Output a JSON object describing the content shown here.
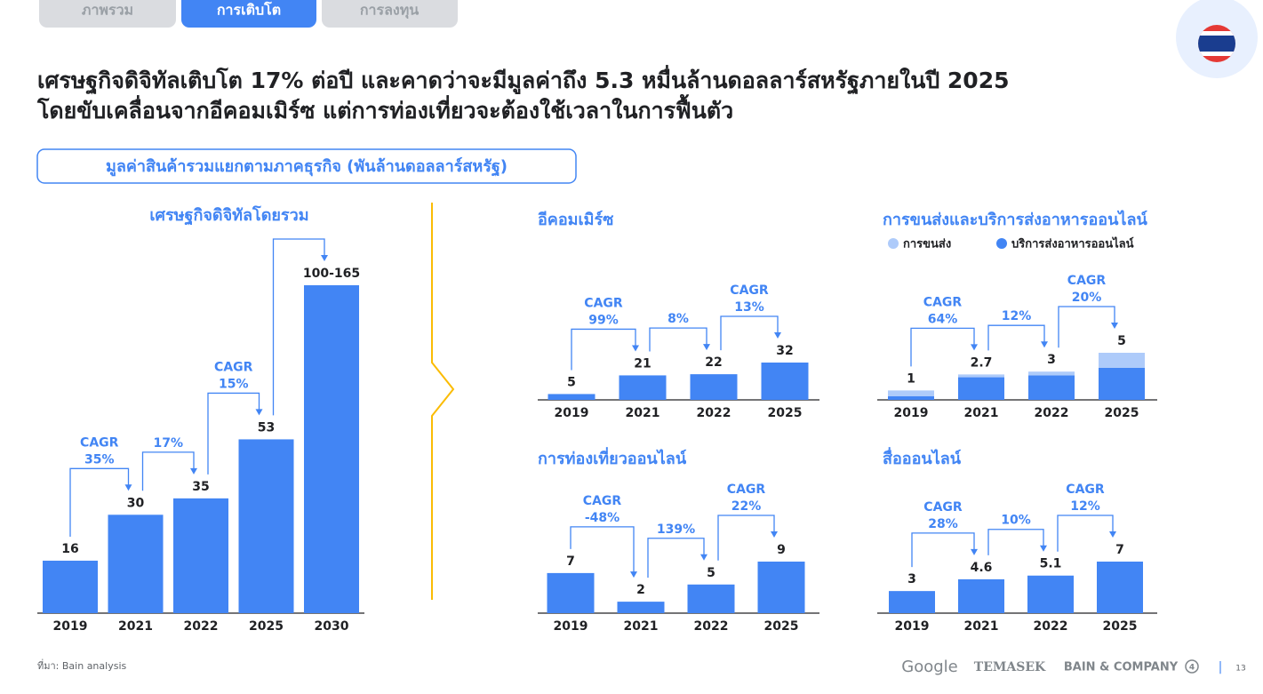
{
  "tabs": [
    "ภาพรวม",
    "การเติบโต",
    "การลงทุน"
  ],
  "heading": [
    "เศรษฐกิจดิจิทัลเติบโต 17% ต่อปี และคาดว่าจะมีมูลค่าถึง 5.3 หมื่นล้านดอลลาร์สหรัฐภายในปี 2025",
    "โดยขับเคลื่อนจากอีคอมเมิร์ซ แต่การท่องเที่ยวจะต้องใช้เวลาในการฟื้นตัว"
  ],
  "subtitle": "มูลค่าสินค้ารวมแยกตามภาคธุรกิจ (พันล้านดอลลาร์สหรัฐ)",
  "source": "ที่มา: Bain analysis",
  "logos": [
    "Google",
    "TEMASEK",
    "BAIN & COMPANY"
  ],
  "bain_mark": "4",
  "separator": "|",
  "page_number": "13",
  "chart_data": [
    {
      "type": "bar",
      "title": "เศรษฐกิจดิจิทัลโดยรวม",
      "categories": [
        "2019",
        "2021",
        "2022",
        "2025",
        "2030"
      ],
      "values": [
        16,
        30,
        35,
        53,
        100
      ],
      "value_labels": [
        "16",
        "30",
        "35",
        "53",
        "100-165"
      ],
      "color": "#4285f4",
      "growth_labels": [
        [
          "CAGR",
          "35%"
        ],
        [
          "17%"
        ],
        [
          "CAGR",
          "15%"
        ],
        null
      ]
    },
    {
      "type": "bar",
      "title": "อีคอมเมิร์ซ",
      "categories": [
        "2019",
        "2021",
        "2022",
        "2025"
      ],
      "values": [
        5,
        21,
        22,
        32
      ],
      "color": "#4285f4",
      "growth_labels": [
        [
          "CAGR",
          "99%"
        ],
        [
          "8%"
        ],
        [
          "CAGR",
          "13%"
        ]
      ]
    },
    {
      "type": "stacked_bar",
      "title": "การขนส่งและบริการส่งอาหารออนไลน์",
      "categories": [
        "2019",
        "2021",
        "2022",
        "2025"
      ],
      "series": [
        {
          "name": "บริการส่งอาหารออนไลน์",
          "color": "#4285f4",
          "values": [
            0.4,
            2.4,
            2.6,
            3.4
          ]
        },
        {
          "name": "การขนส่ง",
          "color": "#aecbfa",
          "values": [
            0.6,
            0.3,
            0.4,
            1.6
          ]
        }
      ],
      "totals": [
        1,
        2.7,
        3,
        5
      ],
      "growth_labels": [
        [
          "CAGR",
          "64%"
        ],
        [
          "12%"
        ],
        [
          "CAGR",
          "20%"
        ]
      ]
    },
    {
      "type": "bar",
      "title": "การท่องเที่ยวออนไลน์",
      "categories": [
        "2019",
        "2021",
        "2022",
        "2025"
      ],
      "values": [
        7,
        2,
        5,
        9
      ],
      "color": "#4285f4",
      "growth_labels": [
        [
          "CAGR",
          "-48%"
        ],
        [
          "139%"
        ],
        [
          "CAGR",
          "22%"
        ]
      ]
    },
    {
      "type": "bar",
      "title": "สื่อออนไลน์",
      "categories": [
        "2019",
        "2021",
        "2022",
        "2025"
      ],
      "values": [
        3,
        4.6,
        5.1,
        7
      ],
      "color": "#4285f4",
      "growth_labels": [
        [
          "CAGR",
          "28%"
        ],
        [
          "10%"
        ],
        [
          "CAGR",
          "12%"
        ]
      ]
    }
  ]
}
